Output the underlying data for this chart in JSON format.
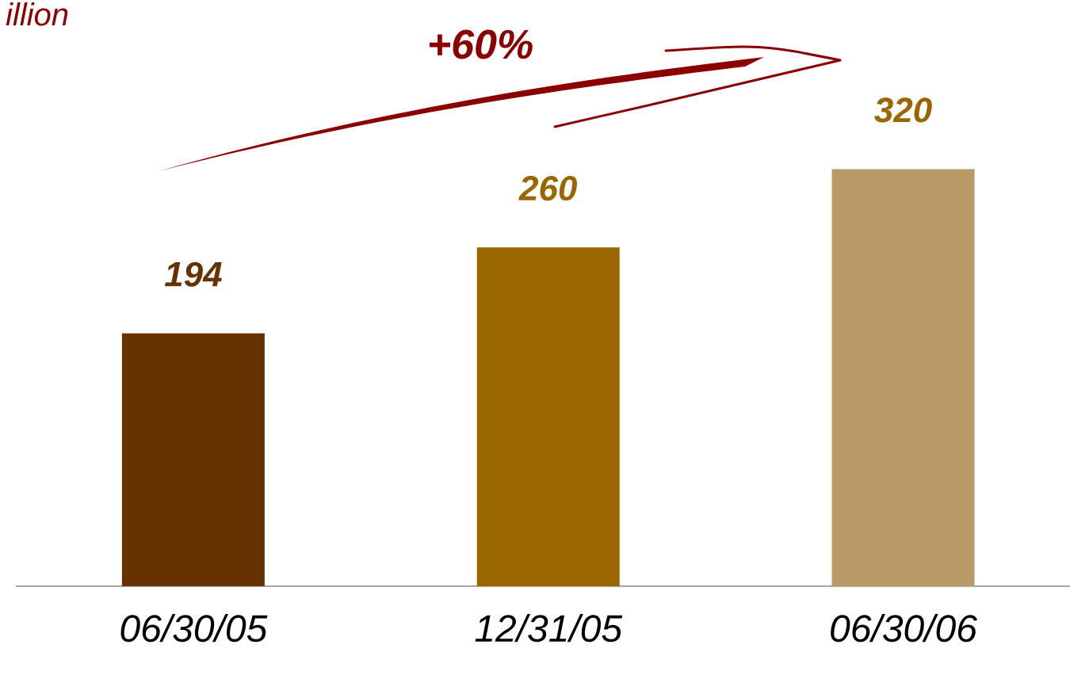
{
  "chart_data": {
    "type": "bar",
    "ylabel": "illion",
    "categories": [
      "06/30/05",
      "12/31/05",
      "06/30/06"
    ],
    "values": [
      194,
      260,
      320
    ],
    "colors": [
      "#663300",
      "#996600",
      "#b89a66"
    ],
    "data_labels": true,
    "annotations": [
      "+60%"
    ]
  }
}
